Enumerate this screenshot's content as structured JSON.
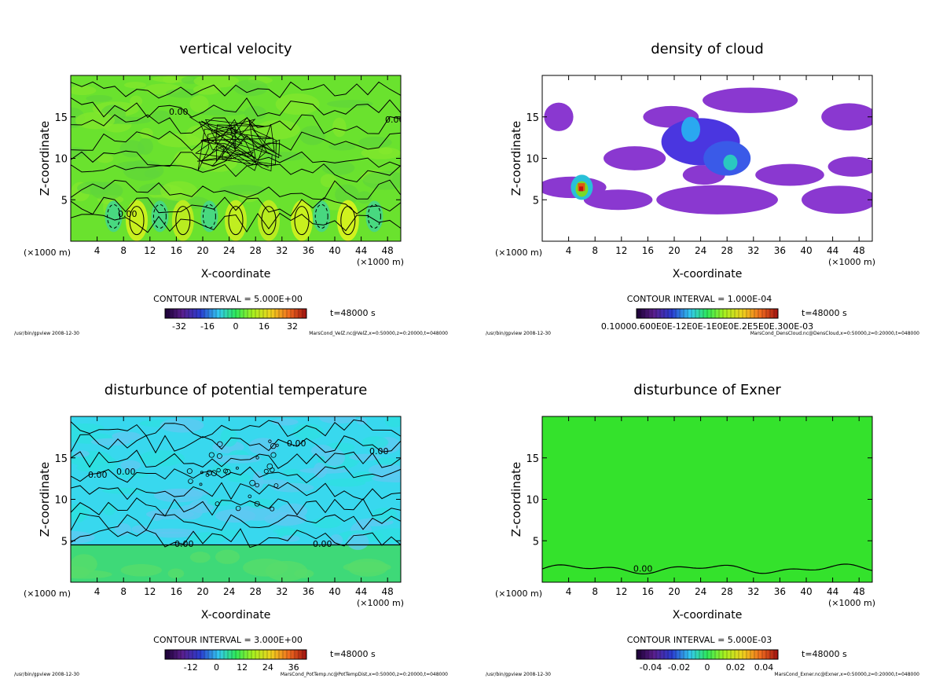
{
  "page": {
    "background": "#ffffff"
  },
  "chart_data": [
    {
      "type": "heatmap",
      "title": "vertical velocity",
      "xlabel": "X-coordinate",
      "ylabel": "Z-coordinate",
      "x_unit": "(×1000 m)",
      "xlim": [
        0,
        50
      ],
      "ylim": [
        0,
        20
      ],
      "x_ticks": [
        4,
        8,
        12,
        16,
        20,
        24,
        28,
        32,
        36,
        40,
        44,
        48
      ],
      "y_ticks": [
        5,
        10,
        15
      ],
      "field": "Green-dominated field of near-zero vertical velocity with closed positive (yellow) and negative (cyan, dashed) cells near the surface",
      "contour_label": "0.00",
      "contour_interval": "CONTOUR INTERVAL = 5.000E+00",
      "colorbar": {
        "ticks": [
          "-32",
          "-16",
          "0",
          "16",
          "32"
        ],
        "range": [
          -40,
          40
        ]
      },
      "time": "t=48000 s",
      "footer_left": "/usr/bin/gpview  2008-12-30",
      "footer_right": "MarsCond_VelZ.nc@VelZ,x=0:50000,z=0:20000,t=048000"
    },
    {
      "type": "heatmap",
      "title": "density of cloud",
      "xlabel": "X-coordinate",
      "ylabel": "Z-coordinate",
      "x_unit": "(×1000 m)",
      "xlim": [
        0,
        50
      ],
      "ylim": [
        0,
        20
      ],
      "x_ticks": [
        4,
        8,
        12,
        16,
        20,
        24,
        28,
        32,
        36,
        40,
        44,
        48
      ],
      "y_ticks": [
        5,
        10,
        15
      ],
      "field": "Cloud density patches (purple/blue) between 5 and 17 km with a dense core near x=6 km, white elsewhere",
      "contour_interval": "CONTOUR INTERVAL = 1.000E-04",
      "colorbar": {
        "ticks_text": "0.10000.600E0E-12E0E-1E0E0E.2E5E0E.300E-03"
      },
      "time": "t=48000 s",
      "footer_left": "/usr/bin/gpview  2008-12-30",
      "footer_right": "MarsCond_DensCloud.nc@DensCloud,x=0:50000,z=0:20000,t=048000"
    },
    {
      "type": "heatmap",
      "title": "disturbunce of potential temperature",
      "xlabel": "X-coordinate",
      "ylabel": "Z-coordinate",
      "x_unit": "(×1000 m)",
      "xlim": [
        0,
        50
      ],
      "ylim": [
        0,
        20
      ],
      "x_ticks": [
        4,
        8,
        12,
        16,
        20,
        24,
        28,
        32,
        36,
        40,
        44,
        48
      ],
      "y_ticks": [
        5,
        10,
        15
      ],
      "field": "Cyan/light-blue negative disturbance above about 4.5 km, green near-zero layer below",
      "contour_label": "0.00",
      "contour_interval": "CONTOUR INTERVAL = 3.000E+00",
      "colorbar": {
        "ticks": [
          "-12",
          "0",
          "12",
          "24",
          "36"
        ],
        "range": [
          -24,
          42
        ]
      },
      "time": "t=48000 s",
      "footer_left": "/usr/bin/gpview  2008-12-30",
      "footer_right": "MarsCond_PotTemp.nc@PotTempDist,x=0:50000,z=0:20000,t=048000"
    },
    {
      "type": "heatmap",
      "title": "disturbunce of Exner",
      "xlabel": "X-coordinate",
      "ylabel": "Z-coordinate",
      "x_unit": "(×1000 m)",
      "xlim": [
        0,
        50
      ],
      "ylim": [
        0,
        20
      ],
      "x_ticks": [
        4,
        8,
        12,
        16,
        20,
        24,
        28,
        32,
        36,
        40,
        44,
        48
      ],
      "y_ticks": [
        5,
        10,
        15
      ],
      "field": "Uniform green field with a single wavy zero contour near 1.5 km",
      "contour_label": "0.00",
      "contour_interval": "CONTOUR INTERVAL = 5.000E-03",
      "colorbar": {
        "ticks": [
          "-0.04",
          "-0.02",
          "0",
          "0.02",
          "0.04"
        ],
        "range": [
          -0.05,
          0.05
        ]
      },
      "time": "t=48000 s",
      "footer_left": "/usr/bin/gpview  2008-12-30",
      "footer_right": "MarsCond_Exner.nc@Exner,x=0:50000,z=0:20000,t=048000"
    }
  ]
}
